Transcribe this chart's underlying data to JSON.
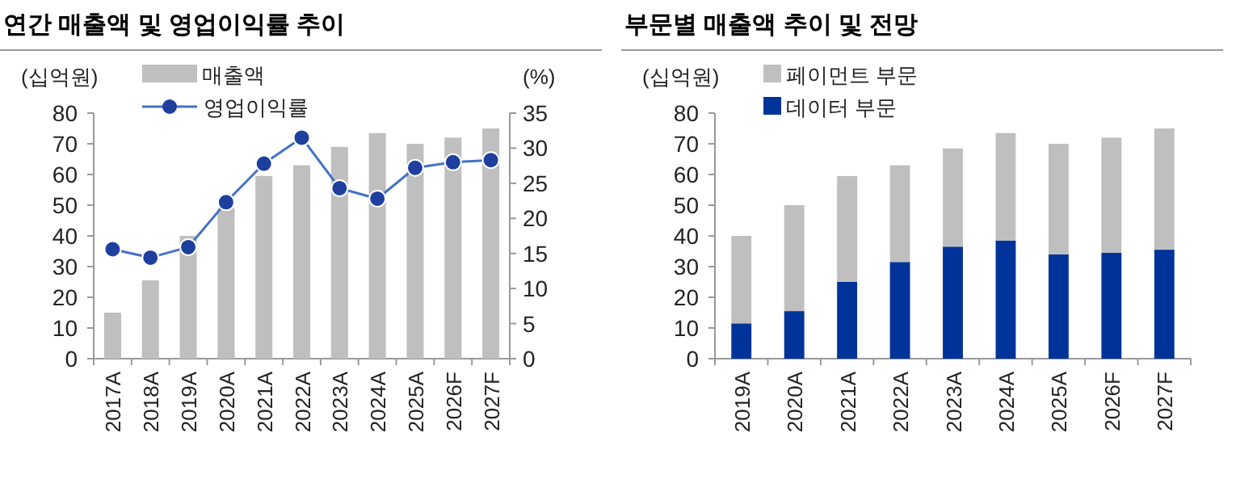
{
  "chart_data": [
    {
      "type": "bar",
      "title": "연간 매출액 및 영업이익률 추이",
      "ylabel": "(십억원)",
      "y2label": "(%)",
      "categories": [
        "2017A",
        "2018A",
        "2019A",
        "2020A",
        "2021A",
        "2022A",
        "2023A",
        "2024A",
        "2025A",
        "2026F",
        "2027F"
      ],
      "series": [
        {
          "name": "매출액",
          "color": "#bfbfbf",
          "values": [
            15,
            25.5,
            40,
            49,
            59.5,
            63,
            69,
            73.5,
            70,
            72,
            75
          ]
        },
        {
          "name": "영업이익률",
          "type": "line",
          "axis": "y2",
          "color": "#1f3f9f",
          "values": [
            15.6,
            14.4,
            15.9,
            22.3,
            27.8,
            31.5,
            24.3,
            22.8,
            27.2,
            28,
            28.3
          ]
        }
      ],
      "ylim": [
        0,
        80
      ],
      "yticks": [
        0,
        10,
        20,
        30,
        40,
        50,
        60,
        70,
        80
      ],
      "y2lim": [
        0,
        35
      ],
      "y2ticks": [
        0,
        5,
        10,
        15,
        20,
        25,
        30,
        35
      ],
      "marker": "circle",
      "legend": "top left",
      "grid": false
    },
    {
      "type": "bar",
      "stacked": true,
      "title": "부문별 매출액 추이 및 전망",
      "ylabel": "(십억원)",
      "categories": [
        "2019A",
        "2020A",
        "2021A",
        "2022A",
        "2023A",
        "2024A",
        "2025A",
        "2026F",
        "2027F"
      ],
      "series": [
        {
          "name": "데이터 부문",
          "color": "#003399",
          "values": [
            11.5,
            15.5,
            25,
            31.5,
            36.5,
            38.5,
            34,
            34.5,
            35.5
          ]
        },
        {
          "name": "페이먼트 부문",
          "color": "#bfbfbf",
          "values": [
            28.5,
            34.5,
            34.5,
            31.5,
            32,
            35,
            36,
            37.5,
            39.5
          ]
        }
      ],
      "ylim": [
        0,
        80
      ],
      "yticks": [
        0,
        10,
        20,
        30,
        40,
        50,
        60,
        70,
        80
      ],
      "legend": "top left",
      "grid": false
    }
  ]
}
